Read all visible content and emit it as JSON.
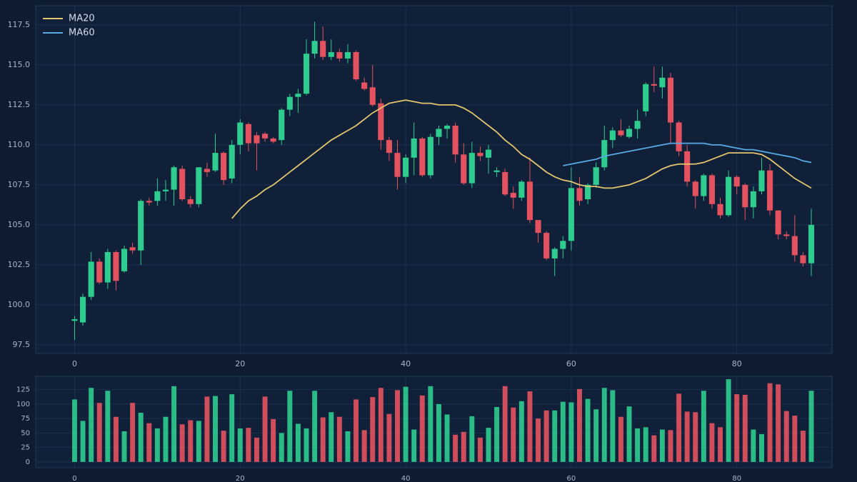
{
  "chart_data": [
    {
      "type": "candlestick",
      "up_color": "#2ecc8f",
      "down_color": "#e5525f",
      "x": [
        0,
        1,
        2,
        3,
        4,
        5,
        6,
        7,
        8,
        9,
        10,
        11,
        12,
        13,
        14,
        15,
        16,
        17,
        18,
        19,
        20,
        21,
        22,
        23,
        24,
        25,
        26,
        27,
        28,
        29,
        30,
        31,
        32,
        33,
        34,
        35,
        36,
        37,
        38,
        39,
        40,
        41,
        42,
        43,
        44,
        45,
        46,
        47,
        48,
        49,
        50,
        51,
        52,
        53,
        54,
        55,
        56,
        57,
        58,
        59,
        60,
        61,
        62,
        63,
        64,
        65,
        66,
        67,
        68,
        69,
        70,
        71,
        72,
        73,
        74,
        75,
        76,
        77,
        78,
        79,
        80,
        81,
        82,
        83,
        84,
        85,
        86,
        87,
        88,
        89
      ],
      "open": [
        99.0,
        98.9,
        100.5,
        102.7,
        101.4,
        103.3,
        102.1,
        103.6,
        103.4,
        106.5,
        106.5,
        107.1,
        107.2,
        108.5,
        106.6,
        106.3,
        108.5,
        108.4,
        109.5,
        107.9,
        110.0,
        111.3,
        110.6,
        110.7,
        110.4,
        110.3,
        112.2,
        113.0,
        113.2,
        115.7,
        116.5,
        115.5,
        115.8,
        115.4,
        115.8,
        113.9,
        113.6,
        112.6,
        110.3,
        109.5,
        108.0,
        109.2,
        110.4,
        108.1,
        110.5,
        111.0,
        111.2,
        109.4,
        107.6,
        109.5,
        109.2,
        108.3,
        108.3,
        107.0,
        106.7,
        107.7,
        105.3,
        104.5,
        102.9,
        103.5,
        104.0,
        107.3,
        106.6,
        107.5,
        108.6,
        110.3,
        110.9,
        110.5,
        111.0,
        112.1,
        113.8,
        113.6,
        114.2,
        111.4,
        109.6,
        107.7,
        106.8,
        108.1,
        106.3,
        105.6,
        108.0,
        107.5,
        106.1,
        107.1,
        108.4,
        105.9,
        104.4,
        104.3,
        103.1,
        102.6
      ],
      "high": [
        99.3,
        100.7,
        103.3,
        102.9,
        103.5,
        103.4,
        103.7,
        103.9,
        106.6,
        106.7,
        107.9,
        107.8,
        108.7,
        108.7,
        106.8,
        108.6,
        108.9,
        110.7,
        109.6,
        110.3,
        111.6,
        111.4,
        110.8,
        110.8,
        110.5,
        112.3,
        113.2,
        113.5,
        116.6,
        117.7,
        117.4,
        116.6,
        116.0,
        116.3,
        115.9,
        114.2,
        115.0,
        112.9,
        110.5,
        110.3,
        109.4,
        111.4,
        110.5,
        110.7,
        111.2,
        111.3,
        111.4,
        110.1,
        110.2,
        109.9,
        110.0,
        108.6,
        108.5,
        107.4,
        107.8,
        109.2,
        105.3,
        104.6,
        103.6,
        104.3,
        108.6,
        108.0,
        107.6,
        108.9,
        111.2,
        111.1,
        111.6,
        111.2,
        112.2,
        113.9,
        114.9,
        114.9,
        114.5,
        111.5,
        110.0,
        107.8,
        108.2,
        108.2,
        106.7,
        108.4,
        108.1,
        107.6,
        107.4,
        109.2,
        108.8,
        105.9,
        104.6,
        105.6,
        103.3,
        106.0
      ],
      "low": [
        97.8,
        98.7,
        100.3,
        101.3,
        101.0,
        100.9,
        102.0,
        103.2,
        102.5,
        106.2,
        106.2,
        106.5,
        106.2,
        106.5,
        106.1,
        106.1,
        108.0,
        108.3,
        107.5,
        107.6,
        109.4,
        109.6,
        108.4,
        110.2,
        110.1,
        110.0,
        111.8,
        112.0,
        113.1,
        115.4,
        115.3,
        115.3,
        115.2,
        115.1,
        114.0,
        113.4,
        112.4,
        109.7,
        109.0,
        107.2,
        107.6,
        108.1,
        108.0,
        107.9,
        110.0,
        110.4,
        108.9,
        107.5,
        107.3,
        109.0,
        108.2,
        108.0,
        106.8,
        106.0,
        106.5,
        105.1,
        103.9,
        102.8,
        101.8,
        102.9,
        103.4,
        106.2,
        106.3,
        107.3,
        108.4,
        109.8,
        110.5,
        110.4,
        110.4,
        111.8,
        113.3,
        112.9,
        110.1,
        109.3,
        107.4,
        106.0,
        106.5,
        106.0,
        105.4,
        105.5,
        106.9,
        105.3,
        105.4,
        106.9,
        105.6,
        104.1,
        104.1,
        102.7,
        102.4,
        101.8
      ],
      "close": [
        99.1,
        100.5,
        102.7,
        101.4,
        103.3,
        101.5,
        103.5,
        103.4,
        106.5,
        106.4,
        107.1,
        107.2,
        108.6,
        106.6,
        106.3,
        108.6,
        108.3,
        109.5,
        107.8,
        110.0,
        111.4,
        110.1,
        110.1,
        110.4,
        110.2,
        112.2,
        113.0,
        113.2,
        115.7,
        116.5,
        115.5,
        115.8,
        115.4,
        115.8,
        114.1,
        113.5,
        112.5,
        110.3,
        109.5,
        108.0,
        109.2,
        110.4,
        108.1,
        110.5,
        111.0,
        111.2,
        109.4,
        107.6,
        109.5,
        109.3,
        109.7,
        108.4,
        106.9,
        106.7,
        107.7,
        105.3,
        104.5,
        102.9,
        103.5,
        104.0,
        107.3,
        106.5,
        107.5,
        108.6,
        110.3,
        110.9,
        110.6,
        111.0,
        111.5,
        113.8,
        113.7,
        114.2,
        111.4,
        109.6,
        107.7,
        106.8,
        108.1,
        106.3,
        105.6,
        108.0,
        107.4,
        106.1,
        107.1,
        108.4,
        105.9,
        104.4,
        104.3,
        103.1,
        102.6,
        105.0
      ],
      "series": [
        {
          "name": "MA20",
          "color": "#e3c56e",
          "values": [
            null,
            null,
            null,
            null,
            null,
            null,
            null,
            null,
            null,
            null,
            null,
            null,
            null,
            null,
            null,
            null,
            null,
            null,
            null,
            105.4,
            106.0,
            106.5,
            106.8,
            107.2,
            107.5,
            107.9,
            108.3,
            108.7,
            109.1,
            109.5,
            109.9,
            110.3,
            110.6,
            110.9,
            111.2,
            111.6,
            112.0,
            112.3,
            112.6,
            112.7,
            112.8,
            112.7,
            112.6,
            112.6,
            112.5,
            112.5,
            112.5,
            112.3,
            112.0,
            111.6,
            111.2,
            110.8,
            110.3,
            109.9,
            109.4,
            109.1,
            108.7,
            108.3,
            108.0,
            107.8,
            107.7,
            107.5,
            107.4,
            107.4,
            107.3,
            107.3,
            107.4,
            107.5,
            107.7,
            107.9,
            108.2,
            108.5,
            108.7,
            108.8,
            108.8,
            108.8,
            108.9,
            109.1,
            109.3,
            109.5,
            109.5,
            109.5,
            109.5,
            109.4,
            109.1,
            108.7,
            108.3,
            107.9,
            107.6,
            107.3
          ]
        },
        {
          "name": "MA60",
          "color": "#5aa9e6",
          "values": [
            null,
            null,
            null,
            null,
            null,
            null,
            null,
            null,
            null,
            null,
            null,
            null,
            null,
            null,
            null,
            null,
            null,
            null,
            null,
            null,
            null,
            null,
            null,
            null,
            null,
            null,
            null,
            null,
            null,
            null,
            null,
            null,
            null,
            null,
            null,
            null,
            null,
            null,
            null,
            null,
            null,
            null,
            null,
            null,
            null,
            null,
            null,
            null,
            null,
            null,
            null,
            null,
            null,
            null,
            null,
            null,
            null,
            null,
            null,
            108.7,
            108.8,
            108.9,
            109.0,
            109.1,
            109.3,
            109.4,
            109.5,
            109.6,
            109.7,
            109.8,
            109.9,
            110.0,
            110.1,
            110.1,
            110.1,
            110.1,
            110.1,
            110.0,
            110.0,
            109.9,
            109.8,
            109.7,
            109.7,
            109.6,
            109.5,
            109.4,
            109.3,
            109.2,
            109.0,
            108.9
          ]
        }
      ],
      "legend": "upper left",
      "grid": true,
      "xlim": [
        -4.7,
        91.5
      ],
      "ylim": [
        96.96,
        118.7
      ],
      "xticks": [
        0,
        20,
        40,
        60,
        80
      ],
      "yticks": [
        97.5,
        {
          "value": 100,
          "label": "100.0"
        },
        102.5,
        {
          "value": 105,
          "label": "105.0"
        },
        107.5,
        {
          "value": 110,
          "label": "110.0"
        },
        112.5,
        {
          "value": 115,
          "label": "115.0"
        },
        117.5
      ]
    },
    {
      "type": "bar",
      "up_color": "#2ecc8f",
      "down_color": "#e5525f",
      "values": [
        108,
        71,
        128,
        102,
        123,
        78,
        53,
        102,
        85,
        67,
        58,
        78,
        131,
        65,
        72,
        71,
        113,
        114,
        54,
        117,
        58,
        59,
        42,
        113,
        74,
        50,
        123,
        66,
        58,
        123,
        77,
        86,
        78,
        53,
        108,
        55,
        112,
        128,
        83,
        124,
        130,
        56,
        115,
        131,
        100,
        82,
        47,
        52,
        79,
        42,
        59,
        95,
        131,
        94,
        105,
        122,
        75,
        89,
        89,
        104,
        103,
        126,
        109,
        91,
        128,
        124,
        78,
        96,
        58,
        60,
        46,
        56,
        55,
        118,
        87,
        86,
        123,
        67,
        60,
        143,
        117,
        116,
        56,
        48,
        136,
        134,
        88,
        80,
        54,
        123
      ],
      "grid": true,
      "xlim": [
        -4.7,
        91.5
      ],
      "ylim": [
        -10,
        148
      ],
      "xticks": [
        0,
        20,
        40,
        60,
        80
      ],
      "yticks": [
        0,
        25,
        50,
        75,
        100,
        125
      ]
    }
  ]
}
